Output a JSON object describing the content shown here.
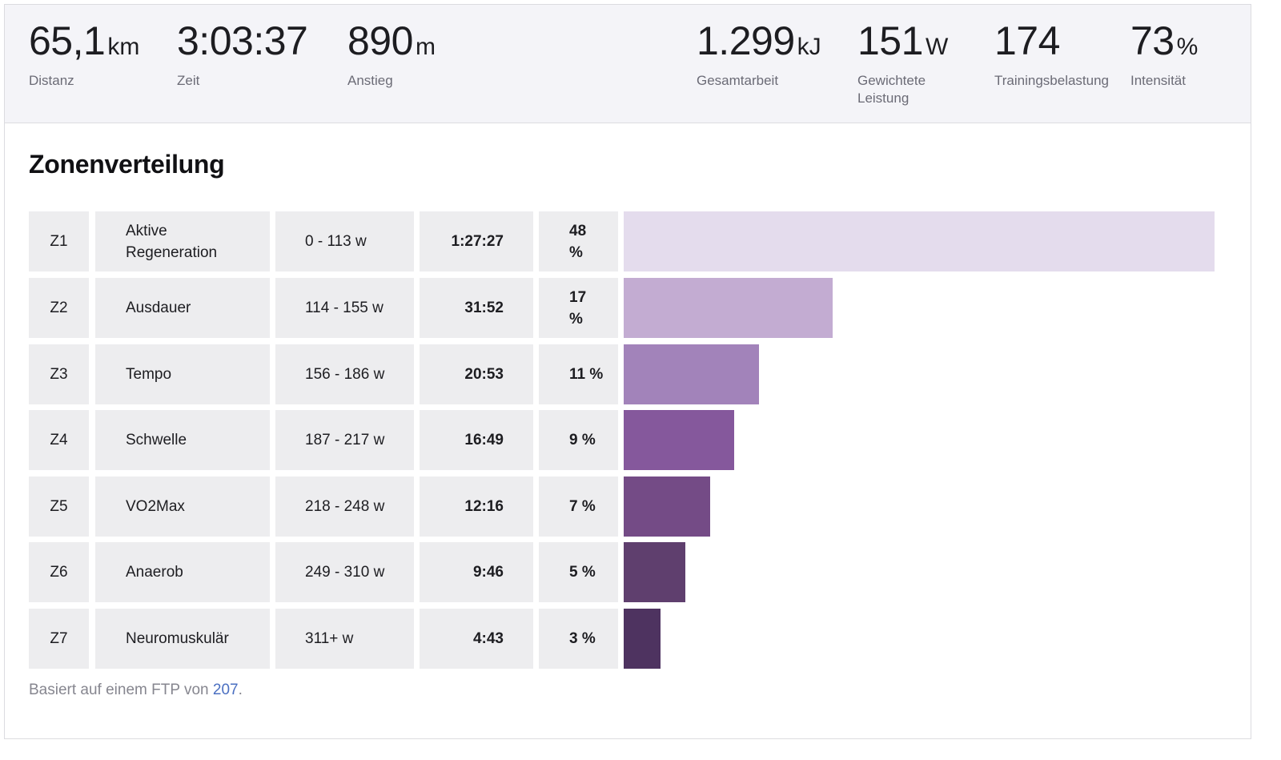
{
  "summary": {
    "stats": [
      {
        "value": "65,1",
        "unit": "km",
        "label": "Distanz"
      },
      {
        "value": "3:03:37",
        "unit": "",
        "label": "Zeit"
      },
      {
        "value": "890",
        "unit": "m",
        "label": "Anstieg"
      },
      {
        "value": "1.299",
        "unit": "kJ",
        "label": "Gesamtarbeit"
      },
      {
        "value": "151",
        "unit": "W",
        "label": "Gewichtete Leistung"
      },
      {
        "value": "174",
        "unit": "",
        "label": "Trainingsbelastung"
      },
      {
        "value": "73",
        "unit": "%",
        "label": "Intensität"
      }
    ]
  },
  "zones": {
    "title": "Zonenverteilung",
    "rows": [
      {
        "id": "Z1",
        "name": "Aktive Regeneration",
        "range": "0 - 113 w",
        "time": "1:27:27",
        "percent": "48 %",
        "share": 0.48,
        "color": "#e4dced"
      },
      {
        "id": "Z2",
        "name": "Ausdauer",
        "range": "114 - 155 w",
        "time": "31:52",
        "percent": "17 %",
        "share": 0.17,
        "color": "#c3acd2"
      },
      {
        "id": "Z3",
        "name": "Tempo",
        "range": "156 - 186 w",
        "time": "20:53",
        "percent": "11 %",
        "share": 0.11,
        "color": "#a283ba"
      },
      {
        "id": "Z4",
        "name": "Schwelle",
        "range": "187 - 217 w",
        "time": "16:49",
        "percent": "9 %",
        "share": 0.09,
        "color": "#85589c"
      },
      {
        "id": "Z5",
        "name": "VO2Max",
        "range": "218 - 248 w",
        "time": "12:16",
        "percent": "7 %",
        "share": 0.07,
        "color": "#744b86"
      },
      {
        "id": "Z6",
        "name": "Anaerob",
        "range": "249 - 310 w",
        "time": "9:46",
        "percent": "5 %",
        "share": 0.05,
        "color": "#5f3f6e"
      },
      {
        "id": "Z7",
        "name": "Neuromuskulär",
        "range": "311+ w",
        "time": "4:43",
        "percent": "3 %",
        "share": 0.03,
        "color": "#4e3360"
      }
    ],
    "footnote": {
      "prefix": "Basiert auf einem FTP von ",
      "ftp": "207",
      "suffix": "."
    }
  }
}
